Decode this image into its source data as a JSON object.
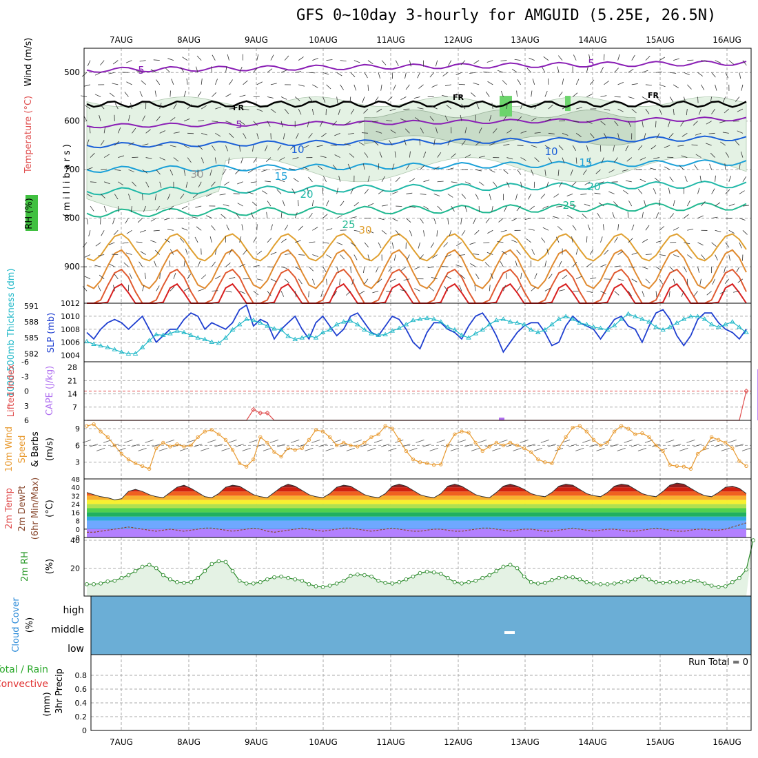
{
  "title": "GFS 0~10day 3-hourly for AMGUID (5.25E, 26.5N)",
  "date_labels": [
    "7AUG",
    "8AUG",
    "9AUG",
    "10AUG",
    "11AUG",
    "12AUG",
    "13AUG",
    "14AUG",
    "15AUG",
    "16AUG"
  ],
  "chart_data": [
    {
      "type": "heatmap",
      "name": "pressure-time cross section",
      "ylabel_parts": [
        "Wind (m/s)",
        "Temperature (°C)",
        "RH (%)",
        "(millibars)"
      ],
      "y_ticks": [
        500,
        600,
        700,
        800,
        900
      ],
      "ylim": [
        450,
        975
      ],
      "contour_labels": [
        "5",
        "5",
        "5",
        "10",
        "10",
        "15",
        "15",
        "20",
        "20",
        "25",
        "25",
        "30",
        "30",
        "FR",
        "FR",
        "FR"
      ],
      "freezing_level_mb": 565
    },
    {
      "type": "line",
      "name": "thickness and sea level pressure",
      "ylabel_left": "1000-500mb Thickness (dm)",
      "ylabel_right": "SLP (mb)",
      "left_ticks": [
        582,
        585,
        588,
        591
      ],
      "right_ticks": [
        1004,
        1006,
        1008,
        1010,
        1012
      ],
      "series": [
        {
          "name": "SLP (mb)",
          "color": "#1f3fd0",
          "values": [
            1007.5,
            1006.5,
            1008,
            1009,
            1009.5,
            1009,
            1008,
            1009,
            1010,
            1008,
            1006,
            1007,
            1008,
            1008,
            1009.5,
            1010.5,
            1010,
            1008,
            1009,
            1008.5,
            1008,
            1009,
            1011,
            1011.7,
            1008.5,
            1009.5,
            1009,
            1006.5,
            1008,
            1009,
            1010,
            1008,
            1006.5,
            1009,
            1010,
            1008.5,
            1007,
            1008,
            1010,
            1010.5,
            1009,
            1007.5,
            1007,
            1008.5,
            1010,
            1009.5,
            1008,
            1006,
            1005,
            1007.5,
            1009,
            1009,
            1008,
            1007.5,
            1006.5,
            1008.5,
            1010,
            1010.5,
            1009,
            1007,
            1004.5,
            1006,
            1007.5,
            1008.5,
            1009,
            1009,
            1007.5,
            1005.5,
            1006,
            1008.5,
            1010,
            1009,
            1008.5,
            1008,
            1006.5,
            1008,
            1009.5,
            1010,
            1008.5,
            1008,
            1006,
            1008.5,
            1010.5,
            1011,
            1009.5,
            1007,
            1005.5,
            1007,
            1009.5,
            1010.5,
            1010.5,
            1009,
            1008,
            1007.5,
            1006.5,
            1008
          ]
        },
        {
          "name": "1000-500mb Thickness (dm)",
          "color": "#20b8c8",
          "values": [
            584.3,
            583.8,
            583.5,
            583.2,
            582.8,
            582.3,
            582.0,
            582.0,
            583.2,
            584.5,
            585.6,
            585.5,
            585.8,
            586.3,
            586.0,
            585.5,
            585.0,
            584.7,
            584.2,
            584.0,
            585.0,
            586.5,
            587.5,
            588.5,
            588.3,
            587.8,
            587.2,
            586.7,
            586.5,
            585.3,
            584.7,
            585.0,
            585.4,
            585.0,
            586.0,
            586.5,
            587.5,
            588.0,
            588.2,
            587.5,
            586.5,
            585.8,
            585.5,
            585.6,
            586.3,
            586.8,
            587.5,
            588.3,
            588.5,
            588.7,
            588.5,
            588.0,
            587.0,
            586.5,
            585.5,
            585.0,
            585.8,
            586.5,
            587.5,
            588.3,
            588.5,
            588.0,
            587.8,
            587.5,
            586.5,
            586.0,
            586.5,
            587.5,
            588.5,
            589.0,
            588.5,
            587.8,
            587.5,
            587.0,
            586.8,
            586.5,
            587.3,
            588.5,
            589.5,
            589.0,
            588.5,
            588.0,
            587.0,
            586.5,
            587.0,
            587.8,
            588.5,
            589.0,
            589.0,
            588.5,
            587.5,
            587.0,
            587.5,
            588.0,
            587.0,
            586.0
          ]
        }
      ]
    },
    {
      "type": "bar",
      "name": "lifted index and CAPE",
      "ylabel_left": "Lifted Index",
      "ylabel_right": "CAPE (J/kg)",
      "left_ticks": [
        "-6",
        "-3",
        "0",
        "3",
        "6"
      ],
      "right_ticks": [
        "7",
        "14",
        "21",
        "28"
      ],
      "lifted_index": [
        6,
        6,
        6,
        6,
        6,
        6,
        6,
        6,
        6,
        6,
        6,
        6,
        6,
        6,
        6,
        6,
        6,
        6,
        6,
        6,
        6,
        6,
        6,
        6,
        3.8,
        4.5,
        4.5,
        6,
        6,
        6,
        6,
        6,
        6,
        6,
        6,
        6,
        6,
        6,
        6,
        6,
        6,
        6,
        6,
        6,
        6,
        6,
        6,
        6,
        6,
        6,
        6,
        6,
        6,
        6,
        6,
        6,
        6,
        6,
        6,
        6,
        6,
        6,
        6,
        6,
        6,
        6,
        6,
        6,
        6,
        6,
        6,
        6,
        6,
        6,
        6,
        6,
        6,
        6,
        6,
        6,
        6,
        6,
        6,
        6,
        6,
        6,
        6,
        6,
        6,
        6,
        6,
        6,
        6,
        6,
        6,
        0
      ],
      "cape": [
        0,
        0,
        0,
        0,
        0,
        0,
        0,
        0,
        0,
        0,
        0,
        0,
        0,
        0,
        0,
        0,
        0,
        0,
        0,
        0,
        0,
        0,
        0,
        0,
        0,
        0,
        0,
        0,
        0,
        0,
        0,
        0,
        0,
        0,
        0,
        0,
        0,
        0,
        0,
        0,
        0,
        0,
        0,
        0,
        0,
        0,
        0,
        0,
        0,
        0,
        0,
        0,
        0,
        0,
        0,
        0,
        0,
        0,
        0,
        0,
        0,
        0,
        0,
        0,
        0,
        0,
        0,
        0,
        0,
        0,
        0,
        0,
        0,
        0,
        0,
        0,
        0,
        0,
        0,
        0,
        0,
        0,
        0,
        0,
        0,
        0,
        0,
        0,
        0,
        0,
        0,
        0,
        0,
        0,
        0,
        0,
        0,
        27
      ]
    },
    {
      "type": "line",
      "name": "10m wind",
      "ylabel_parts": [
        "10m Wind",
        "Speed",
        "& Barbs",
        "(m/s)"
      ],
      "y_ticks": [
        3,
        6,
        9
      ],
      "ylim": [
        0,
        10.5
      ],
      "series": [
        {
          "name": "Speed",
          "color": "#e89a30",
          "values": [
            9.5,
            9.8,
            8.5,
            7.5,
            6.0,
            4.5,
            3.5,
            2.8,
            2.3,
            1.8,
            5.5,
            6.5,
            5.8,
            6.2,
            5.8,
            6.0,
            7.5,
            8.5,
            8.8,
            8.0,
            7.0,
            5.2,
            2.8,
            2.2,
            3.5,
            7.5,
            6.5,
            4.8,
            4.0,
            5.5,
            5.2,
            5.5,
            7.0,
            8.8,
            8.5,
            7.5,
            6.0,
            6.5,
            6.0,
            5.8,
            6.5,
            7.5,
            8.0,
            9.5,
            9.0,
            7.0,
            5.0,
            3.5,
            3.0,
            2.8,
            2.5,
            2.6,
            6.0,
            8.0,
            8.5,
            8.3,
            6.5,
            5.0,
            5.8,
            6.5,
            6.0,
            6.5,
            6.0,
            5.5,
            4.8,
            3.5,
            3.0,
            2.8,
            5.5,
            7.5,
            9.2,
            9.5,
            8.5,
            7.0,
            6.0,
            6.5,
            8.5,
            9.5,
            9.0,
            8.0,
            8.2,
            7.5,
            6.0,
            5.0,
            2.5,
            2.3,
            2.2,
            1.8,
            4.5,
            5.5,
            7.5,
            7.0,
            6.5,
            5.5,
            3.2,
            2.3
          ]
        }
      ]
    },
    {
      "type": "area",
      "name": "2m temperature",
      "ylabel_parts": [
        "2m Temp",
        "2m DewPt",
        "(6hr Min/Max)",
        "(°C)"
      ],
      "y_ticks": [
        -8,
        0,
        8,
        16,
        24,
        32,
        40,
        48
      ],
      "ylim": [
        -8,
        48
      ],
      "series": [
        {
          "name": "2m Temp",
          "values": [
            35,
            33,
            31,
            30,
            28,
            29,
            36,
            38,
            36,
            33,
            31,
            30,
            35,
            40,
            42,
            39,
            35,
            31,
            30,
            34,
            40,
            42,
            41,
            37,
            33,
            31,
            30,
            35,
            40,
            43,
            41,
            37,
            33,
            31,
            30,
            34,
            40,
            42,
            41,
            37,
            33,
            31,
            30,
            34,
            41,
            43,
            41,
            37,
            33,
            31,
            30,
            34,
            41,
            43,
            41,
            37,
            33,
            31,
            30,
            35,
            41,
            43,
            41,
            38,
            34,
            32,
            31,
            35,
            41,
            43,
            42,
            38,
            34,
            32,
            31,
            35,
            41,
            43,
            42,
            38,
            34,
            32,
            31,
            36,
            42,
            44,
            43,
            39,
            35,
            32,
            31,
            35,
            40,
            41,
            39,
            34
          ]
        },
        {
          "name": "2m DewPt",
          "values": [
            -3,
            -3,
            -2,
            -1,
            0,
            1,
            2,
            1,
            0,
            -1,
            -2,
            -1,
            0,
            -1,
            -2,
            -1,
            0,
            1,
            1,
            0,
            -1,
            -2,
            -1,
            0,
            1,
            0,
            -2,
            -3,
            -2,
            -1,
            0,
            1,
            0,
            -1,
            -2,
            -1,
            0,
            1,
            1,
            0,
            -1,
            -2,
            -1,
            0,
            1,
            0,
            -1,
            -2,
            -2,
            -1,
            0,
            0,
            -1,
            -2,
            -2,
            -1,
            0,
            1,
            1,
            0,
            -1,
            -2,
            -1,
            0,
            0,
            -1,
            -2,
            -2,
            -1,
            0,
            1,
            0,
            -1,
            -2,
            -1,
            0,
            0,
            -1,
            -2,
            -2,
            -1,
            0,
            1,
            0,
            -1,
            -2,
            -2,
            -1,
            0,
            0,
            -1,
            -1,
            0,
            2,
            4,
            6
          ]
        }
      ]
    },
    {
      "type": "line",
      "name": "2m relative humidity",
      "ylabel_parts": [
        "2m RH",
        "(%)"
      ],
      "y_ticks": [
        20,
        40
      ],
      "ylim": [
        0,
        42
      ],
      "series": [
        {
          "name": "2m RH",
          "values": [
            8.5,
            8.5,
            9,
            10.5,
            11,
            13,
            15,
            18,
            21,
            22.5,
            20,
            15,
            12,
            10,
            9.5,
            10,
            13,
            18,
            23,
            25,
            24.5,
            18,
            11,
            9,
            9,
            10,
            12,
            13.5,
            14,
            13,
            12,
            11,
            8.5,
            7,
            6.5,
            7.5,
            9,
            11,
            14.5,
            15.5,
            15,
            14,
            11,
            9.5,
            9,
            10,
            12,
            14,
            16.5,
            17.5,
            17,
            16,
            13,
            10,
            9,
            10,
            11,
            13,
            15,
            18,
            21,
            22.5,
            20,
            14,
            10,
            9,
            9.5,
            11.5,
            13,
            13.5,
            13.5,
            12,
            10,
            9,
            8.5,
            8.5,
            9,
            10,
            10.5,
            12,
            14,
            12,
            10,
            9.5,
            10,
            10,
            10,
            11,
            11,
            9,
            7.5,
            6.5,
            7,
            10,
            13,
            19,
            40
          ]
        }
      ]
    },
    {
      "type": "heatmap",
      "name": "cloud cover",
      "ylabel_parts": [
        "Cloud Cover",
        "(%)"
      ],
      "levels": [
        "high",
        "middle",
        "low"
      ],
      "fill_color": "#6baed6"
    },
    {
      "type": "bar",
      "name": "3hr precipitation",
      "ylabel_parts": [
        "Total / Rain",
        "Convective",
        "3hr Precip",
        "(mm)"
      ],
      "y_ticks": [
        "0",
        "0.2",
        "0.4",
        "0.6",
        "0.8"
      ],
      "ylim": [
        0,
        1
      ],
      "run_total": "Run Total =  0",
      "values": []
    }
  ]
}
